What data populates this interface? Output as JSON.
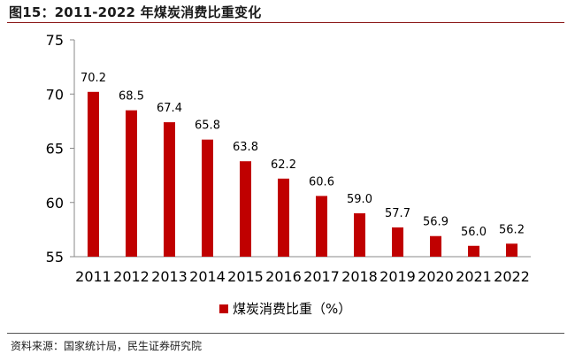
{
  "figure_title": "图15：2011-2022 年煤炭消费比重变化",
  "source_note": "资料来源：国家统计局，民生证券研究院",
  "colors": {
    "bar": "#c00000",
    "title_rule": "#8b1a1a"
  },
  "chart_data": {
    "type": "bar",
    "categories": [
      "2011",
      "2012",
      "2013",
      "2014",
      "2015",
      "2016",
      "2017",
      "2018",
      "2019",
      "2020",
      "2021",
      "2022"
    ],
    "series": [
      {
        "name": "煤炭消费比重（%）",
        "values": [
          70.2,
          68.5,
          67.4,
          65.8,
          63.8,
          62.2,
          60.6,
          59.0,
          57.7,
          56.9,
          56.0,
          56.2
        ]
      }
    ],
    "data_labels": [
      "70.2",
      "68.5",
      "67.4",
      "65.8",
      "63.8",
      "62.2",
      "60.6",
      "59.0",
      "57.7",
      "56.9",
      "56.0",
      "56.2"
    ],
    "ylim": [
      55,
      75
    ],
    "yticks": [
      55,
      60,
      65,
      70,
      75
    ],
    "grid": false,
    "legend_position": "bottom"
  }
}
